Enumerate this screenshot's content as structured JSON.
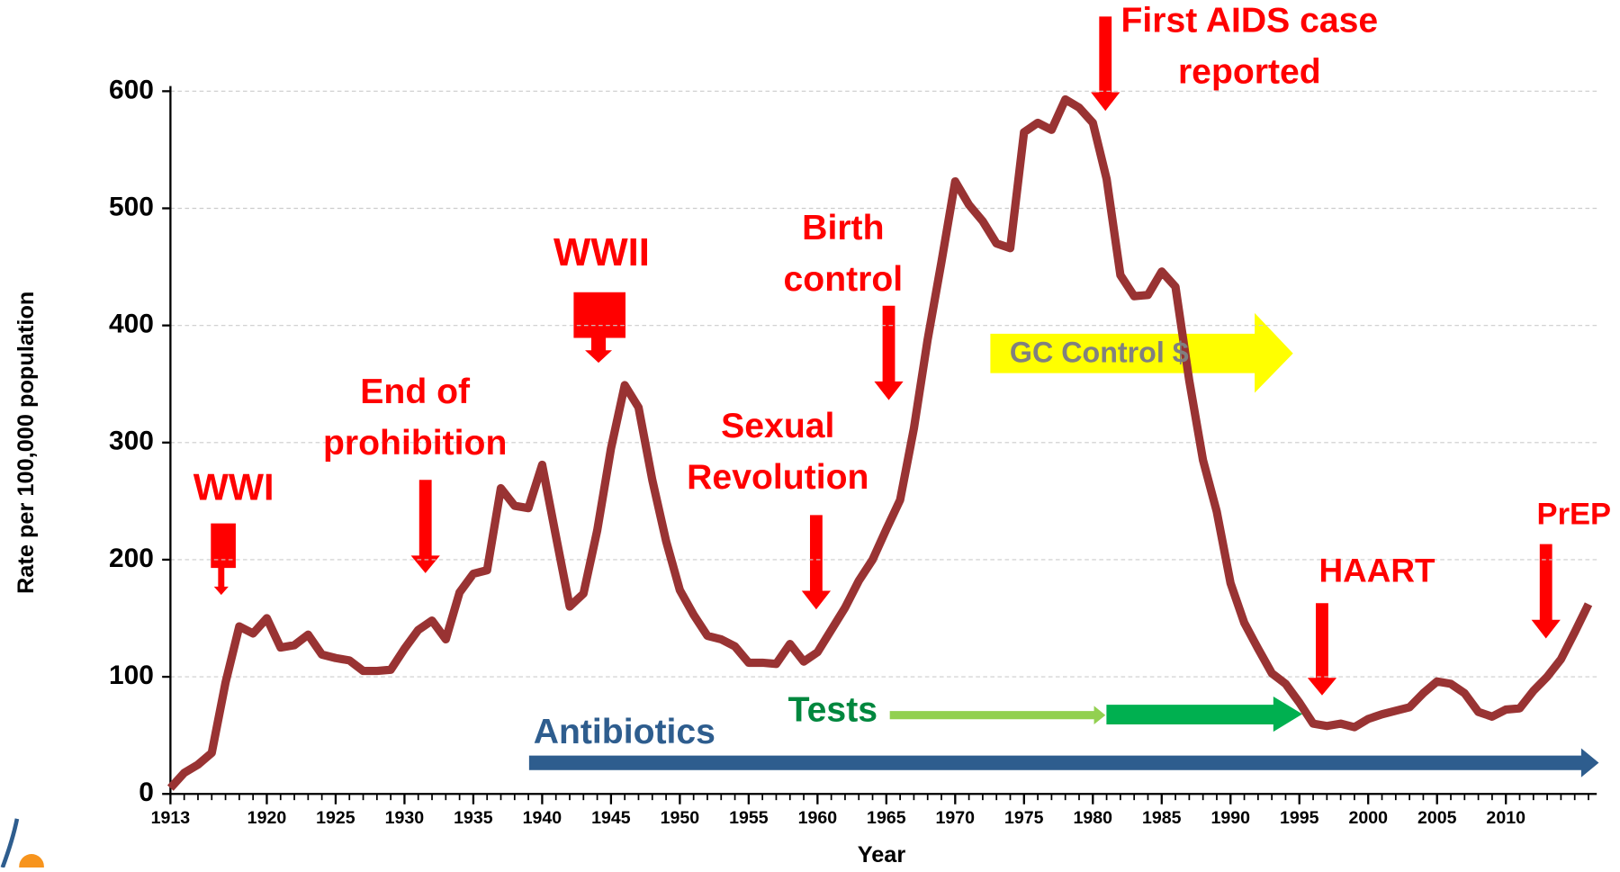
{
  "chart_data": {
    "type": "line",
    "x_label": "Year",
    "y_label": "Rate per 100,000 population",
    "x": [
      1913,
      1914,
      1915,
      1916,
      1917,
      1918,
      1919,
      1920,
      1921,
      1922,
      1923,
      1924,
      1925,
      1926,
      1927,
      1928,
      1929,
      1930,
      1931,
      1932,
      1933,
      1934,
      1935,
      1936,
      1937,
      1938,
      1939,
      1940,
      1941,
      1942,
      1943,
      1944,
      1945,
      1946,
      1947,
      1948,
      1949,
      1950,
      1951,
      1952,
      1953,
      1954,
      1955,
      1956,
      1957,
      1958,
      1959,
      1960,
      1961,
      1962,
      1963,
      1964,
      1965,
      1966,
      1967,
      1968,
      1969,
      1970,
      1971,
      1972,
      1973,
      1974,
      1975,
      1976,
      1977,
      1978,
      1979,
      1980,
      1981,
      1982,
      1983,
      1984,
      1985,
      1986,
      1987,
      1988,
      1989,
      1990,
      1991,
      1992,
      1993,
      1994,
      1995,
      1996,
      1997,
      1998,
      1999,
      2000,
      2001,
      2002,
      2003,
      2004,
      2005,
      2006,
      2007,
      2008,
      2009,
      2010,
      2011,
      2012,
      2013,
      2014,
      2015,
      2016
    ],
    "series": [
      {
        "color": "#993333",
        "values": [
          5,
          18,
          25,
          35,
          95,
          143,
          137,
          150,
          125,
          127,
          136,
          119,
          116,
          114,
          105,
          105,
          106,
          124,
          140,
          148,
          132,
          172,
          188,
          191,
          261,
          246,
          244,
          281,
          220,
          160,
          171,
          225,
          295,
          349,
          330,
          268,
          216,
          174,
          153,
          135,
          132,
          126,
          112,
          112,
          111,
          128,
          113,
          121,
          140,
          159,
          182,
          200,
          226,
          251,
          312,
          388,
          454,
          523,
          503,
          489,
          470,
          466,
          565,
          573,
          567,
          593,
          586,
          573,
          525,
          443,
          425,
          426,
          446,
          433,
          353,
          285,
          241,
          180,
          146,
          124,
          103,
          94,
          78,
          60,
          58,
          60,
          57,
          64,
          68,
          71,
          74,
          86,
          96,
          94,
          86,
          70,
          66,
          72,
          73,
          88,
          100,
          115,
          138,
          162
        ]
      }
    ],
    "xlim": [
      1913,
      2016.6
    ],
    "xticks": [
      1913,
      1920,
      1925,
      1930,
      1935,
      1940,
      1945,
      1950,
      1955,
      1960,
      1965,
      1970,
      1975,
      1980,
      1985,
      1990,
      1995,
      2000,
      2005,
      2010
    ],
    "ylim": [
      0,
      600
    ],
    "yticks": [
      0,
      100,
      200,
      300,
      400,
      500,
      600
    ],
    "grid": true,
    "annotations": [
      {
        "lines": [
          "WWI"
        ],
        "color": "#ff0000"
      },
      {
        "lines": [
          "End of",
          "prohibition"
        ],
        "color": "#ff0000"
      },
      {
        "lines": [
          "WWII"
        ],
        "color": "#ff0000"
      },
      {
        "lines": [
          "Sexual",
          "Revolution"
        ],
        "color": "#ff0000"
      },
      {
        "lines": [
          "Birth",
          "control"
        ],
        "color": "#ff0000"
      },
      {
        "lines": [
          "First AIDS case",
          "reported"
        ],
        "color": "#ff0000"
      },
      {
        "lines": [
          "GC Control $"
        ],
        "color": "#808080"
      },
      {
        "lines": [
          "Tests"
        ],
        "color": "#00873e"
      },
      {
        "lines": [
          "Antibiotics"
        ],
        "color": "#2e5d8e"
      },
      {
        "lines": [
          "HAART"
        ],
        "color": "#ff0000"
      },
      {
        "lines": [
          "PrEP"
        ],
        "color": "#ff0000"
      }
    ]
  }
}
